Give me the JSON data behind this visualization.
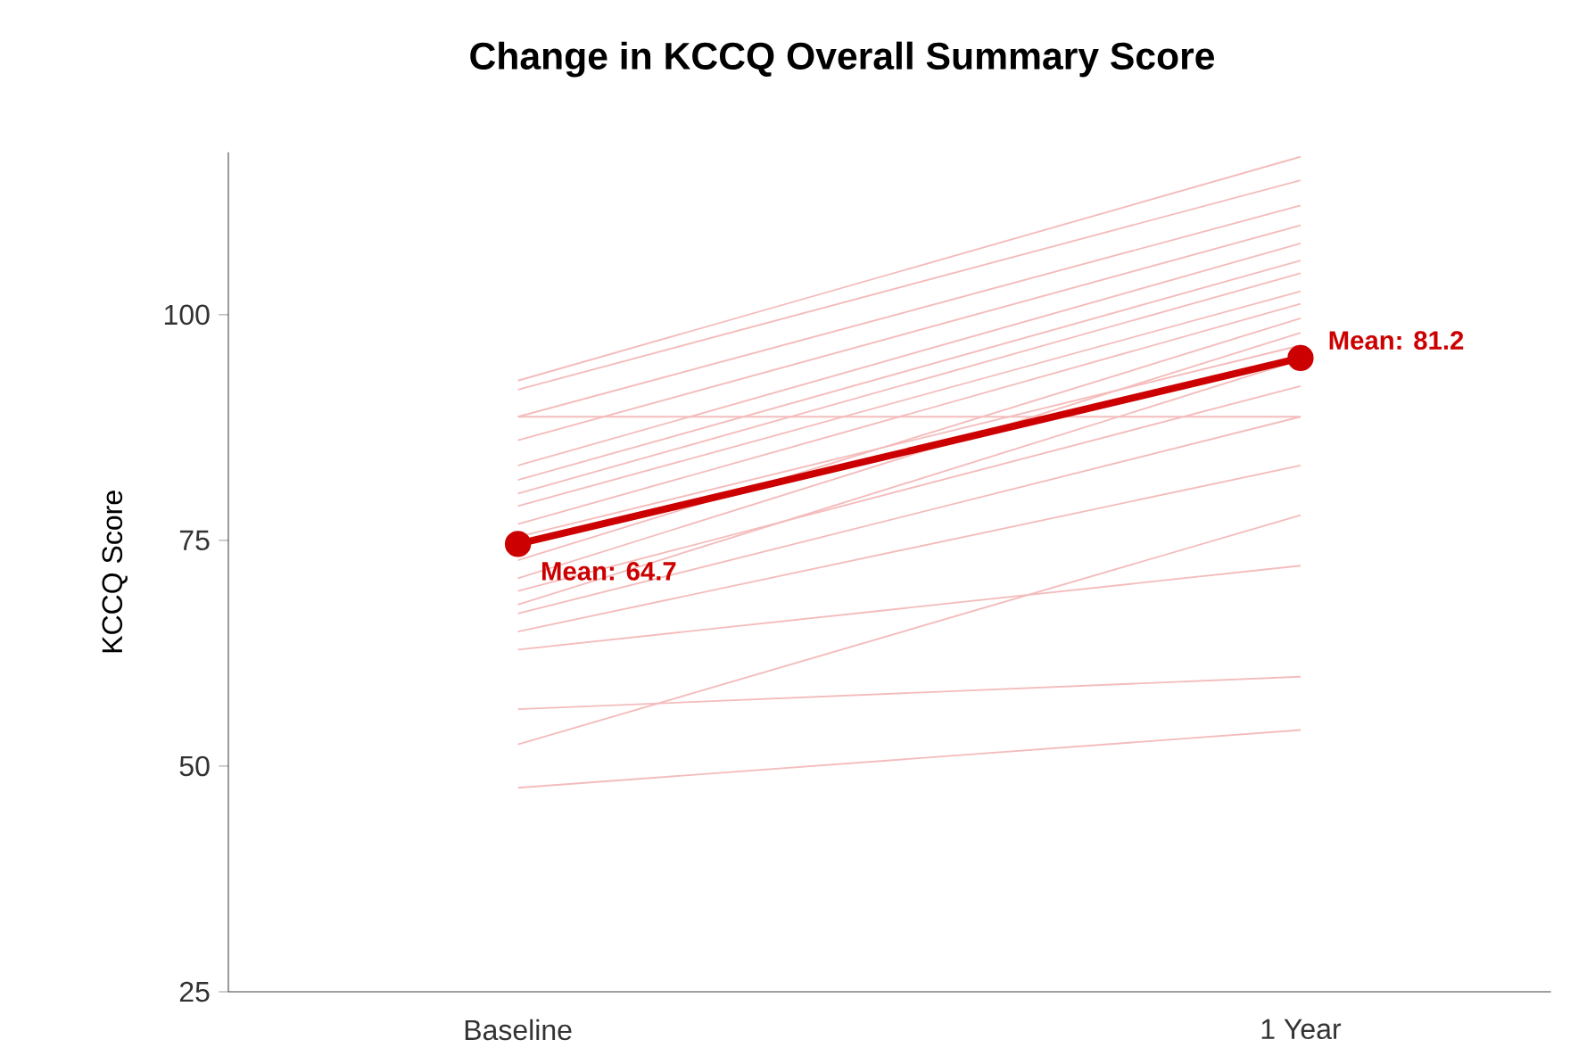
{
  "chart_data": {
    "type": "line",
    "title": "Change in KCCQ Overall Summary Score",
    "ylabel": "KCCQ Score",
    "categories": [
      "Baseline",
      "1 Year"
    ],
    "ylim": [
      25,
      118
    ],
    "yticks": [
      25,
      50,
      75,
      100
    ],
    "series": [
      {
        "color": "#f4bcbc",
        "values": [
          47.6,
          54.0
        ]
      },
      {
        "color": "#f4bcbc",
        "values": [
          56.3,
          59.9
        ]
      },
      {
        "color": "#f4bcbc",
        "values": [
          52.4,
          77.8
        ]
      },
      {
        "color": "#f4bcbc",
        "values": [
          62.9,
          72.2
        ]
      },
      {
        "color": "#f4bcbc",
        "values": [
          64.9,
          83.3
        ]
      },
      {
        "color": "#f4bcbc",
        "values": [
          66.9,
          88.7
        ]
      },
      {
        "color": "#f4bcbc",
        "values": [
          67.9,
          95.0
        ]
      },
      {
        "color": "#f4bcbc",
        "values": [
          69.4,
          92.1
        ]
      },
      {
        "color": "#f4bcbc",
        "values": [
          70.8,
          98.0
        ]
      },
      {
        "color": "#f4bcbc",
        "values": [
          72.8,
          99.6
        ]
      },
      {
        "color": "#f4bcbc",
        "values": [
          75.4,
          96.6
        ]
      },
      {
        "color": "#f4bcbc",
        "values": [
          76.8,
          101.2
        ]
      },
      {
        "color": "#f4bcbc",
        "values": [
          78.8,
          102.6
        ]
      },
      {
        "color": "#f4bcbc",
        "values": [
          80.2,
          104.6
        ]
      },
      {
        "color": "#f4bcbc",
        "values": [
          81.7,
          106.0
        ]
      },
      {
        "color": "#f4bcbc",
        "values": [
          83.3,
          107.9
        ]
      },
      {
        "color": "#f4bcbc",
        "values": [
          86.1,
          109.9
        ]
      },
      {
        "color": "#f4bcbc",
        "values": [
          88.7,
          112.1
        ]
      },
      {
        "color": "#f4bcbc",
        "values": [
          91.7,
          114.9
        ]
      },
      {
        "color": "#f4bcbc",
        "values": [
          92.7,
          117.5
        ]
      },
      {
        "color": "#f4bcbc",
        "values": [
          88.7,
          88.7
        ]
      },
      {
        "color": "#cc0000",
        "marker": "circle",
        "values": [
          74.6,
          95.2
        ]
      }
    ],
    "annotations": [
      "Mean: 64.7",
      "Mean: 81.2"
    ]
  }
}
